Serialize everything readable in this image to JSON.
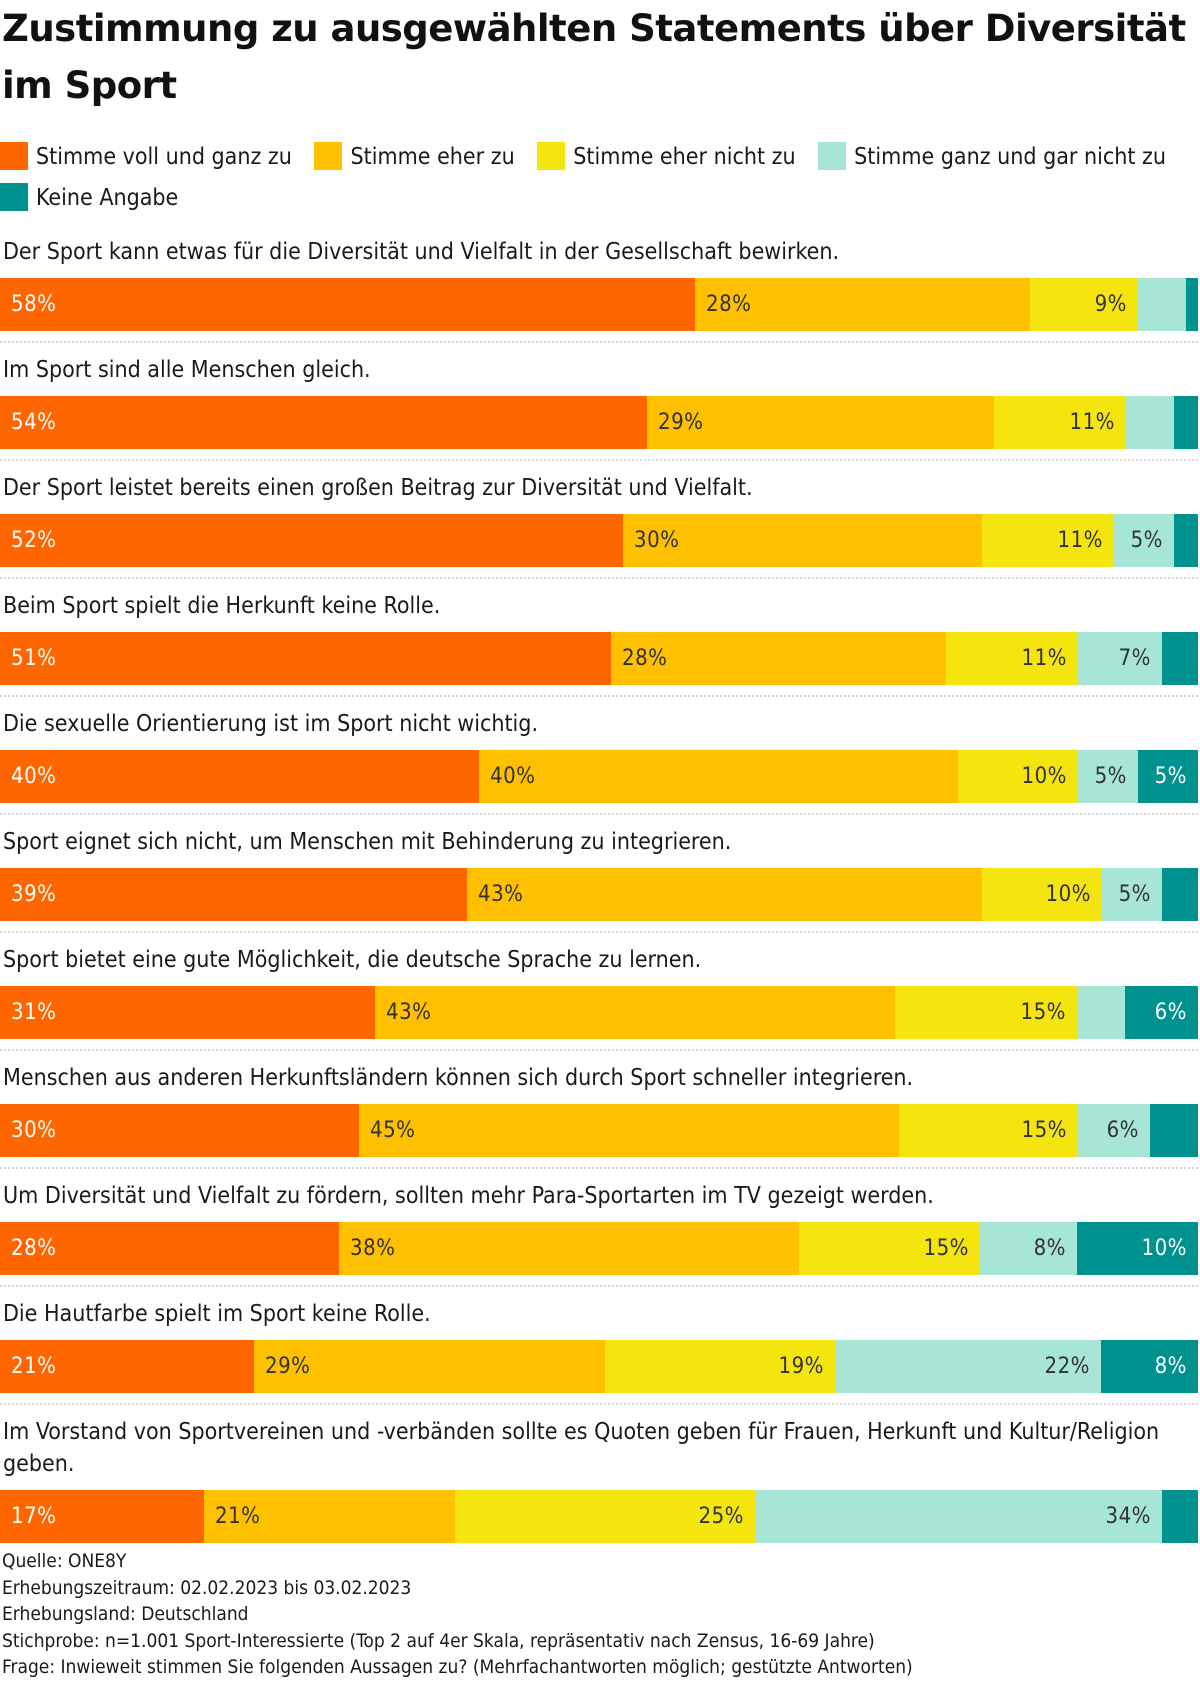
{
  "chart_data": {
    "type": "bar",
    "orientation": "horizontal-stacked-100",
    "title": "Zustimmung zu ausgewählten Statements über Diversität im Sport",
    "xlabel": "",
    "ylabel": "",
    "xlim": [
      0,
      100
    ],
    "grid": false,
    "legend_position": "top",
    "series": [
      {
        "name": "Stimme voll und ganz zu",
        "color": "#FF6600",
        "text_color": "#ffffff"
      },
      {
        "name": "Stimme eher zu",
        "color": "#FFC000",
        "text_color": "#333333"
      },
      {
        "name": "Stimme eher nicht zu",
        "color": "#F5E50F",
        "text_color": "#333333"
      },
      {
        "name": "Stimme ganz und gar nicht zu",
        "color": "#A7E6D7",
        "text_color": "#333333"
      },
      {
        "name": "Keine Angabe",
        "color": "#00928F",
        "text_color": "#ffffff"
      }
    ],
    "categories": [
      "Der Sport kann etwas für die Diversität und Vielfalt in der Gesellschaft bewirken.",
      "Im Sport sind alle Menschen gleich.",
      "Der Sport leistet bereits einen großen Beitrag zur Diversität und Vielfalt.",
      "Beim Sport spielt die Herkunft keine Rolle.",
      "Die sexuelle Orientierung ist im Sport nicht wichtig.",
      "Sport eignet sich nicht, um Menschen mit Behinderung zu integrieren.",
      "Sport bietet eine gute Möglichkeit, die deutsche Sprache zu lernen.",
      "Menschen aus anderen Herkunftsländern können sich durch Sport schneller integrieren.",
      "Um Diversität und Vielfalt zu fördern, sollten mehr Para-Sportarten im TV gezeigt werden.",
      "Die Hautfarbe spielt im Sport keine Rolle.",
      "Im Vorstand von Sportvereinen und -verbänden sollte es Quoten geben für Frauen, Herkunft und Kultur/Religion geben."
    ],
    "values": [
      [
        58,
        28,
        9,
        4,
        1
      ],
      [
        54,
        29,
        11,
        4,
        2
      ],
      [
        52,
        30,
        11,
        5,
        2
      ],
      [
        51,
        28,
        11,
        7,
        3
      ],
      [
        40,
        40,
        10,
        5,
        5
      ],
      [
        39,
        43,
        10,
        5,
        3
      ],
      [
        31,
        43,
        15,
        4,
        6
      ],
      [
        30,
        45,
        15,
        6,
        4
      ],
      [
        28,
        38,
        15,
        8,
        10
      ],
      [
        21,
        29,
        19,
        22,
        8
      ],
      [
        17,
        21,
        25,
        34,
        3
      ]
    ],
    "labels_shown": [
      [
        "58%",
        "28%",
        "9%",
        "",
        ""
      ],
      [
        "54%",
        "29%",
        "11%",
        "",
        ""
      ],
      [
        "52%",
        "30%",
        "11%",
        "5%",
        ""
      ],
      [
        "51%",
        "28%",
        "11%",
        "7%",
        ""
      ],
      [
        "40%",
        "40%",
        "10%",
        "5%",
        "5%"
      ],
      [
        "39%",
        "43%",
        "10%",
        "5%",
        ""
      ],
      [
        "31%",
        "43%",
        "15%",
        "",
        "6%"
      ],
      [
        "30%",
        "45%",
        "15%",
        "6%",
        ""
      ],
      [
        "28%",
        "38%",
        "15%",
        "8%",
        "10%"
      ],
      [
        "21%",
        "29%",
        "19%",
        "22%",
        "8%"
      ],
      [
        "17%",
        "21%",
        "25%",
        "34%",
        ""
      ]
    ]
  },
  "header": {
    "title": "Zustimmung zu ausgewählten Statements über Diversität im Sport"
  },
  "legend": {
    "items": [
      {
        "label": "Stimme voll und ganz zu",
        "color": "#FF6600"
      },
      {
        "label": "Stimme eher zu",
        "color": "#FFC000"
      },
      {
        "label": "Stimme eher nicht zu",
        "color": "#F5E50F"
      },
      {
        "label": "Stimme ganz und gar nicht zu",
        "color": "#A7E6D7"
      },
      {
        "label": "Keine Angabe",
        "color": "#00928F"
      }
    ]
  },
  "footer": {
    "source": "Quelle: ONE8Y",
    "period": "Erhebungszeitraum: 02.02.2023 bis 03.02.2023",
    "country": "Erhebungsland: Deutschland",
    "sample": "Stichprobe: n=1.001 Sport-Interessierte (Top 2 auf 4er Skala, repräsentativ nach Zensus, 16-69 Jahre)",
    "question": "Frage: Inwieweit stimmen Sie folgenden Aussagen zu? (Mehrfachantworten möglich; gestützte Antworten)"
  }
}
